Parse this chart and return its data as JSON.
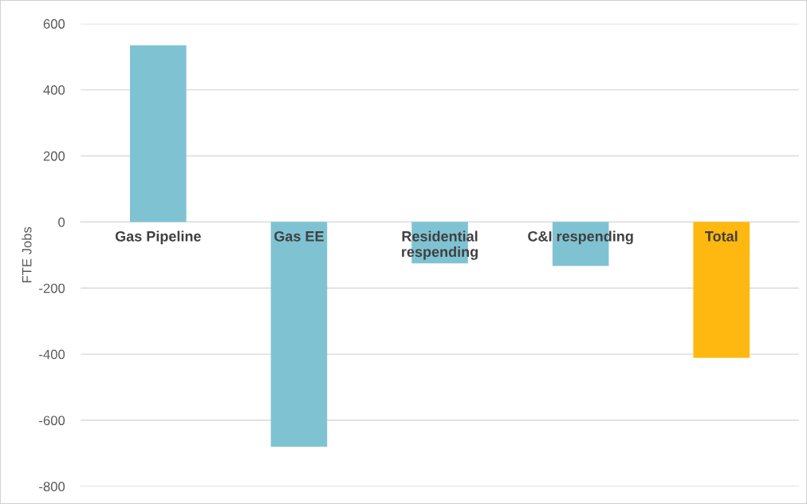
{
  "chart_data": {
    "type": "bar",
    "ylabel": "FTE Jobs",
    "categories": [
      "Gas Pipeline",
      "Gas EE",
      "Residential\nrespending",
      "C&I respending",
      "Total"
    ],
    "values": [
      535,
      -680,
      -125,
      -133,
      -411
    ],
    "colors": [
      "#7fc3d3",
      "#7fc3d3",
      "#7fc3d3",
      "#7fc3d3",
      "#ffb80f"
    ],
    "ylim": [
      -800,
      600
    ],
    "yticks": [
      -800,
      -600,
      -400,
      -200,
      0,
      200,
      400,
      600
    ],
    "grid": "y"
  }
}
